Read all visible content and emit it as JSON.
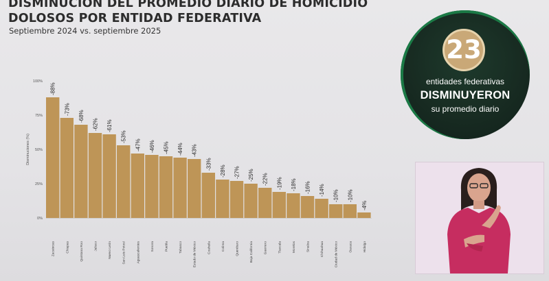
{
  "title_lines": [
    "DISMINUCIÓN DEL PROMEDIO DIARIO DE HOMICIDIO",
    "DOLOSOS POR ENTIDAD FEDERATIVA"
  ],
  "subtitle": "Septiembre 2024 vs. septiembre 2025",
  "colors": {
    "bar": "#be9557",
    "badge_bg": "#172a21",
    "badge_accent": "#1b7a46",
    "badge_gold": "#c9a877",
    "interpreter_dress": "#c62d60"
  },
  "chart_data": {
    "type": "bar",
    "ylabel": "Disminuciones (%)",
    "ylim": [
      0,
      100
    ],
    "yticks": [
      "0%",
      "25%",
      "50%",
      "75%",
      "100%"
    ],
    "grid": false,
    "categories": [
      "Zacatecas",
      "Chiapas",
      "Quintana Roo",
      "Jalisco",
      "Nuevo León",
      "San Luis Potosí",
      "Aguascalientes",
      "Sonora",
      "Puebla",
      "Tabasco",
      "Estado de México",
      "Coahuila",
      "Colima",
      "Querétaro",
      "Baja California",
      "Guerrero",
      "Tlaxcala",
      "Morelos",
      "Sinaloa",
      "Chihuahua",
      "Ciudad de México",
      "Oaxaca",
      "Hidalgo"
    ],
    "values": [
      88,
      73,
      68,
      62,
      61,
      53,
      47,
      46,
      45,
      44,
      43,
      33,
      28,
      27,
      25,
      22,
      19,
      18,
      16,
      14,
      10,
      10,
      4
    ],
    "labels": [
      "-88%",
      "-73%",
      "-68%",
      "-62%",
      "-61%",
      "-53%",
      "-47%",
      "-46%",
      "-45%",
      "-44%",
      "-43%",
      "-33%",
      "-28%",
      "-27%",
      "-25%",
      "-22%",
      "-19%",
      "-18%",
      "-16%",
      "-14%",
      "-10%",
      "-10%",
      "-4%"
    ]
  },
  "badge": {
    "number": "23",
    "line1": "entidades federativas",
    "line2": "DISMINUYERON",
    "line3": "su promedio diario"
  }
}
